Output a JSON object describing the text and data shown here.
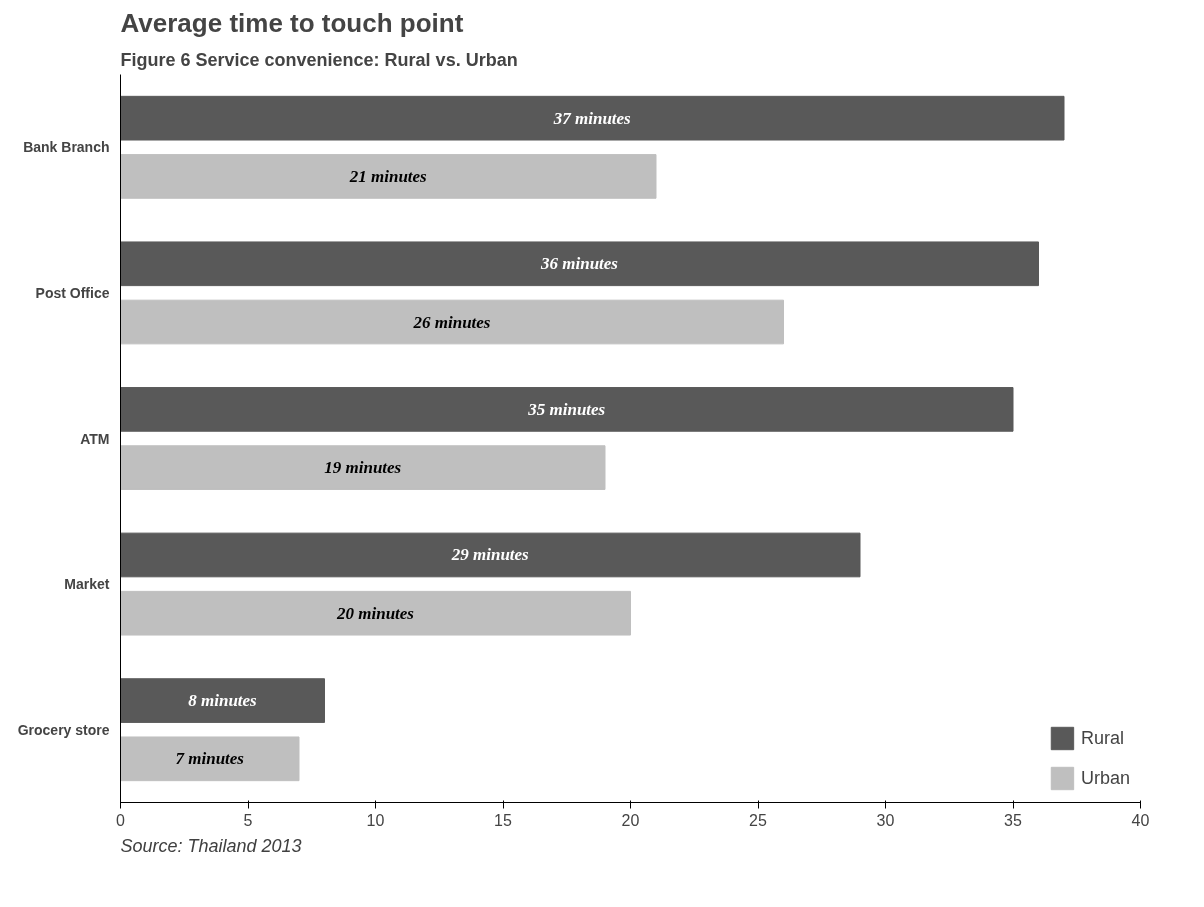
{
  "chart_data": {
    "type": "bar",
    "orientation": "horizontal",
    "title": "Figure 6 Service convenience: Rural vs. Urban",
    "subtitle": "Average time to touch point",
    "categories": [
      "Bank Branch",
      "Post Office",
      "ATM",
      "Market",
      "Grocery store"
    ],
    "series": [
      {
        "name": "Rural",
        "color": "#595959",
        "values": [
          37,
          36,
          35,
          29,
          8
        ],
        "value_labels": [
          "37 minutes",
          "36 minutes",
          "35 minutes",
          "29 minutes",
          "8 minutes"
        ]
      },
      {
        "name": "Urban",
        "color": "#bfbfbf",
        "values": [
          21,
          26,
          19,
          20,
          7
        ],
        "value_labels": [
          "21 minutes",
          "26 minutes",
          "19 minutes",
          "20 minutes",
          "7 minutes"
        ]
      }
    ],
    "xlim": [
      0,
      40
    ],
    "xticks": [
      0,
      5,
      10,
      15,
      20,
      25,
      30,
      35,
      40
    ],
    "grid": false,
    "legend": "bottom right",
    "annotations": [
      "Source: Thailand 2013"
    ]
  }
}
